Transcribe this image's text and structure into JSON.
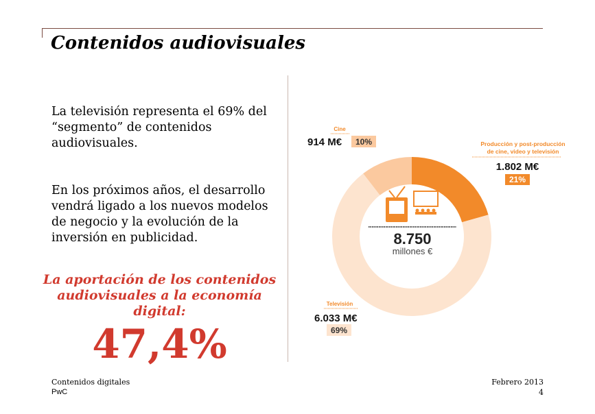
{
  "header": {
    "title": "Contenidos audiovisuales"
  },
  "body": {
    "paragraph1": "La televisión representa el 69% del “segmento” de contenidos audiovisuales.",
    "paragraph2": "En los próximos años, el desarrollo vendrá ligado a los nuevos modelos de negocio y la evolución de la inversión en publicidad.",
    "highlight": "La aportación de los contenidos audiovisuales a la economía digital:",
    "big_value": "47,4%"
  },
  "footer": {
    "left1": "Contenidos digitales",
    "left2": "PwC",
    "right1": "Febrero 2013",
    "page": "4"
  },
  "chart_data": {
    "type": "pie",
    "donut": true,
    "center_value": "8.750",
    "center_unit": "millones €",
    "center_icons": [
      "tv-icon",
      "cinema-icon"
    ],
    "slices": [
      {
        "name": "Producción y post-producción de cine, video y televisión",
        "name_line1": "Producción y post-producción",
        "name_line2": "de cine, video y televisión",
        "value": 1802,
        "value_label": "1.802 M€",
        "percent": 21,
        "percent_label": "21%",
        "color": "#f28a2a"
      },
      {
        "name": "Televisión",
        "value": 6033,
        "value_label": "6.033 M€",
        "percent": 69,
        "percent_label": "69%",
        "color": "#fde4cf"
      },
      {
        "name": "Cine",
        "value": 914,
        "value_label": "914 M€",
        "percent": 10,
        "percent_label": "10%",
        "color": "#fbc99f"
      }
    ]
  }
}
